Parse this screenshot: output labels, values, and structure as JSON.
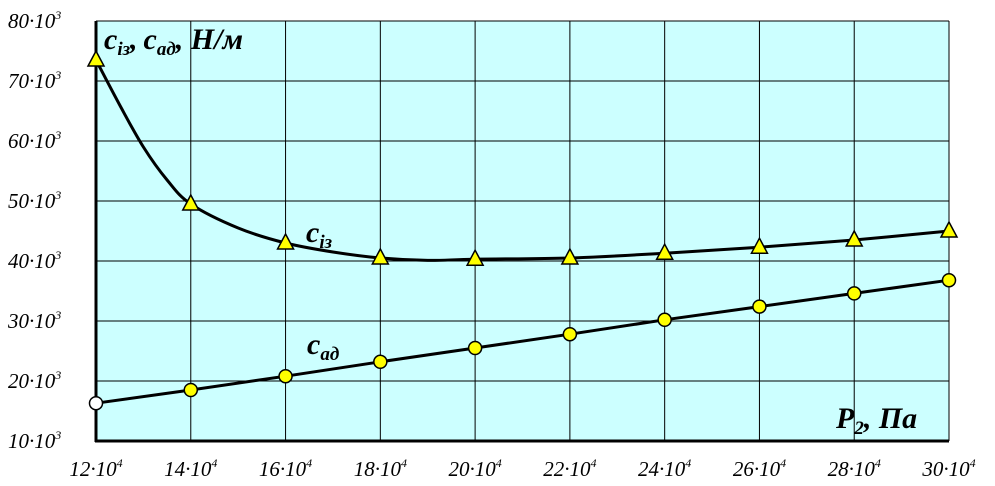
{
  "chart_data": {
    "type": "line",
    "x": [
      120000,
      140000,
      160000,
      180000,
      200000,
      220000,
      240000,
      260000,
      280000,
      300000
    ],
    "x_tick_labels": [
      {
        "base": "12·10",
        "exp": "4"
      },
      {
        "base": "14·10",
        "exp": "4"
      },
      {
        "base": "16·10",
        "exp": "4"
      },
      {
        "base": "18·10",
        "exp": "4"
      },
      {
        "base": "20·10",
        "exp": "4"
      },
      {
        "base": "22·10",
        "exp": "4"
      },
      {
        "base": "24·10",
        "exp": "4"
      },
      {
        "base": "26·10",
        "exp": "4"
      },
      {
        "base": "28·10",
        "exp": "4"
      },
      {
        "base": "30·10",
        "exp": "4"
      }
    ],
    "y_ticks": [
      10000,
      20000,
      30000,
      40000,
      50000,
      60000,
      70000,
      80000
    ],
    "y_tick_labels": [
      {
        "base": "10·10",
        "exp": "3"
      },
      {
        "base": "20·10",
        "exp": "3"
      },
      {
        "base": "30·10",
        "exp": "3"
      },
      {
        "base": "40·10",
        "exp": "3"
      },
      {
        "base": "50·10",
        "exp": "3"
      },
      {
        "base": "60·10",
        "exp": "3"
      },
      {
        "base": "70·10",
        "exp": "3"
      },
      {
        "base": "80·10",
        "exp": "3"
      }
    ],
    "xlim": [
      120000,
      300000
    ],
    "ylim": [
      10000,
      80000
    ],
    "grid": true,
    "ylabel": {
      "c": "c",
      "s1": "із",
      "comma1": ",",
      "c2": "c",
      "s2": "ад",
      "unit": ", Н/м"
    },
    "xlabel": {
      "p": "P",
      "sub": "2",
      "unit": ", Па"
    },
    "series": [
      {
        "name_base": "c",
        "name_sub": "із",
        "marker": "triangle",
        "values": [
          73500,
          49500,
          43000,
          40500,
          40300,
          40500,
          41300,
          42300,
          43500,
          45000
        ],
        "curve_samples": [
          [
            120000,
            73500
          ],
          [
            125000,
            66000
          ],
          [
            130000,
            59000
          ],
          [
            135000,
            53500
          ],
          [
            140000,
            49500
          ],
          [
            150000,
            45500
          ],
          [
            160000,
            43000
          ],
          [
            170000,
            41500
          ],
          [
            180000,
            40500
          ],
          [
            190000,
            40100
          ],
          [
            200000,
            40300
          ],
          [
            220000,
            40500
          ],
          [
            240000,
            41300
          ],
          [
            260000,
            42300
          ],
          [
            280000,
            43500
          ],
          [
            300000,
            45000
          ]
        ]
      },
      {
        "name_base": "c",
        "name_sub": "ад",
        "marker": "circle",
        "values": [
          16300,
          18500,
          20800,
          23200,
          25500,
          27800,
          30200,
          32400,
          34600,
          36800
        ]
      }
    ]
  }
}
